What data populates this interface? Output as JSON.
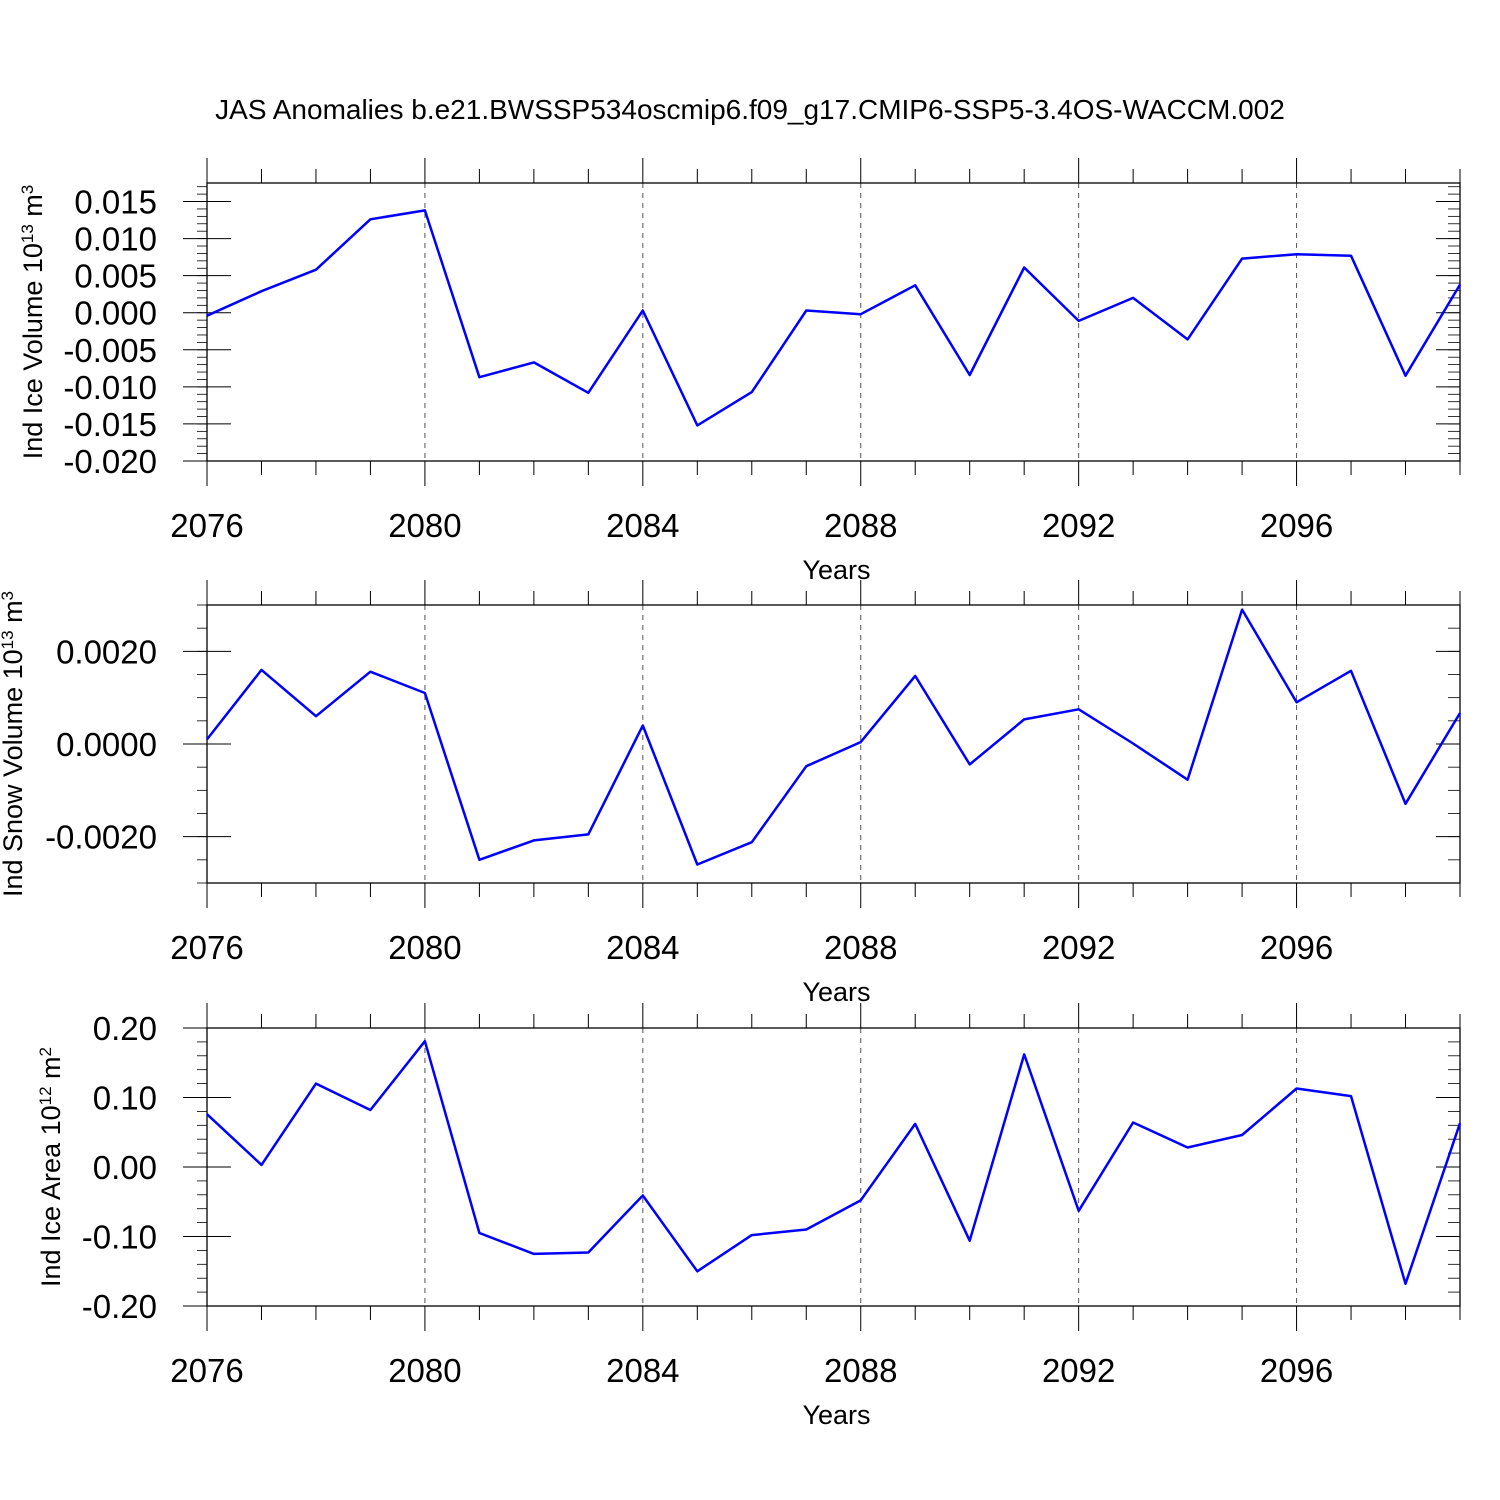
{
  "title": "JAS Anomalies b.e21.BWSSP534oscmip6.f09_g17.CMIP6-SSP5-3.4OS-WACCM.002",
  "line_color": "#0000ff",
  "chart_data": [
    {
      "type": "line",
      "ylabel_main": "Ind Ice Volume 10",
      "ylabel_exp": "13",
      "ylabel_unit": " m",
      "ylabel_unit_exp": "3",
      "xlabel": "Years",
      "xlim": [
        2076,
        2099
      ],
      "ylim": [
        -0.02,
        0.0175
      ],
      "x_ticks": [
        2076,
        2080,
        2084,
        2088,
        2092,
        2096
      ],
      "y_ticks": [
        -0.02,
        -0.015,
        -0.01,
        -0.005,
        0,
        0.005,
        0.01,
        0.015
      ],
      "y_tick_labels": [
        "-0.020",
        "-0.015",
        "-0.010",
        "-0.005",
        "0.000",
        "0.005",
        "0.010",
        "0.015"
      ],
      "y_minor_step": 0.001,
      "grid_x": [
        2080,
        2084,
        2088,
        2092,
        2096
      ],
      "x": [
        2076,
        2077,
        2078,
        2079,
        2080,
        2081,
        2082,
        2083,
        2084,
        2085,
        2086,
        2087,
        2088,
        2089,
        2090,
        2091,
        2092,
        2093,
        2094,
        2095,
        2096,
        2097,
        2098,
        2099
      ],
      "values": [
        -0.0004,
        0.0029,
        0.0058,
        0.0126,
        0.0138,
        -0.0087,
        -0.0067,
        -0.0108,
        0.0003,
        -0.0152,
        -0.0107,
        0.0003,
        -0.0002,
        0.0037,
        -0.0084,
        0.0061,
        -0.0011,
        0.002,
        -0.0036,
        0.0073,
        0.0079,
        0.0077,
        -0.0085,
        0.0038
      ]
    },
    {
      "type": "line",
      "ylabel_main": "Ind Snow Volume 10",
      "ylabel_exp": "13",
      "ylabel_unit": " m",
      "ylabel_unit_exp": "3",
      "xlabel": "Years",
      "xlim": [
        2076,
        2099
      ],
      "ylim": [
        -0.003,
        0.003
      ],
      "x_ticks": [
        2076,
        2080,
        2084,
        2088,
        2092,
        2096
      ],
      "y_ticks": [
        -0.002,
        0,
        0.002
      ],
      "y_tick_labels": [
        "-0.0020",
        "0.0000",
        "0.0020"
      ],
      "y_minor_step": 0.0005,
      "grid_x": [
        2080,
        2084,
        2088,
        2092,
        2096
      ],
      "x": [
        2076,
        2077,
        2078,
        2079,
        2080,
        2081,
        2082,
        2083,
        2084,
        2085,
        2086,
        2087,
        2088,
        2089,
        2090,
        2091,
        2092,
        2093,
        2094,
        2095,
        2096,
        2097,
        2098,
        2099
      ],
      "values": [
        0.0001,
        0.0016,
        0.0006,
        0.00156,
        0.0011,
        -0.0025,
        -0.00208,
        -0.00195,
        0.0004,
        -0.0026,
        -0.00212,
        -0.00048,
        4e-05,
        0.00147,
        -0.00044,
        0.00053,
        0.00075,
        1e-05,
        -0.00077,
        0.0029,
        0.0009,
        0.00158,
        -0.00129,
        0.00067
      ]
    },
    {
      "type": "line",
      "ylabel_main": "Ind Ice Area 10",
      "ylabel_exp": "12",
      "ylabel_unit": " m",
      "ylabel_unit_exp": "2",
      "xlabel": "Years",
      "xlim": [
        2076,
        2099
      ],
      "ylim": [
        -0.2,
        0.2
      ],
      "x_ticks": [
        2076,
        2080,
        2084,
        2088,
        2092,
        2096
      ],
      "y_ticks": [
        -0.2,
        -0.1,
        0,
        0.1,
        0.2
      ],
      "y_tick_labels": [
        "-0.20",
        "-0.10",
        "0.00",
        "0.10",
        "0.20"
      ],
      "y_minor_step": 0.02,
      "grid_x": [
        2080,
        2084,
        2088,
        2092,
        2096
      ],
      "x": [
        2076,
        2077,
        2078,
        2079,
        2080,
        2081,
        2082,
        2083,
        2084,
        2085,
        2086,
        2087,
        2088,
        2089,
        2090,
        2091,
        2092,
        2093,
        2094,
        2095,
        2096,
        2097,
        2098,
        2099
      ],
      "values": [
        0.076,
        0.003,
        0.12,
        0.082,
        0.181,
        -0.095,
        -0.125,
        -0.123,
        -0.041,
        -0.15,
        -0.098,
        -0.09,
        -0.048,
        0.062,
        -0.106,
        0.162,
        -0.063,
        0.064,
        0.028,
        0.046,
        0.113,
        0.102,
        -0.168,
        0.063
      ]
    }
  ]
}
